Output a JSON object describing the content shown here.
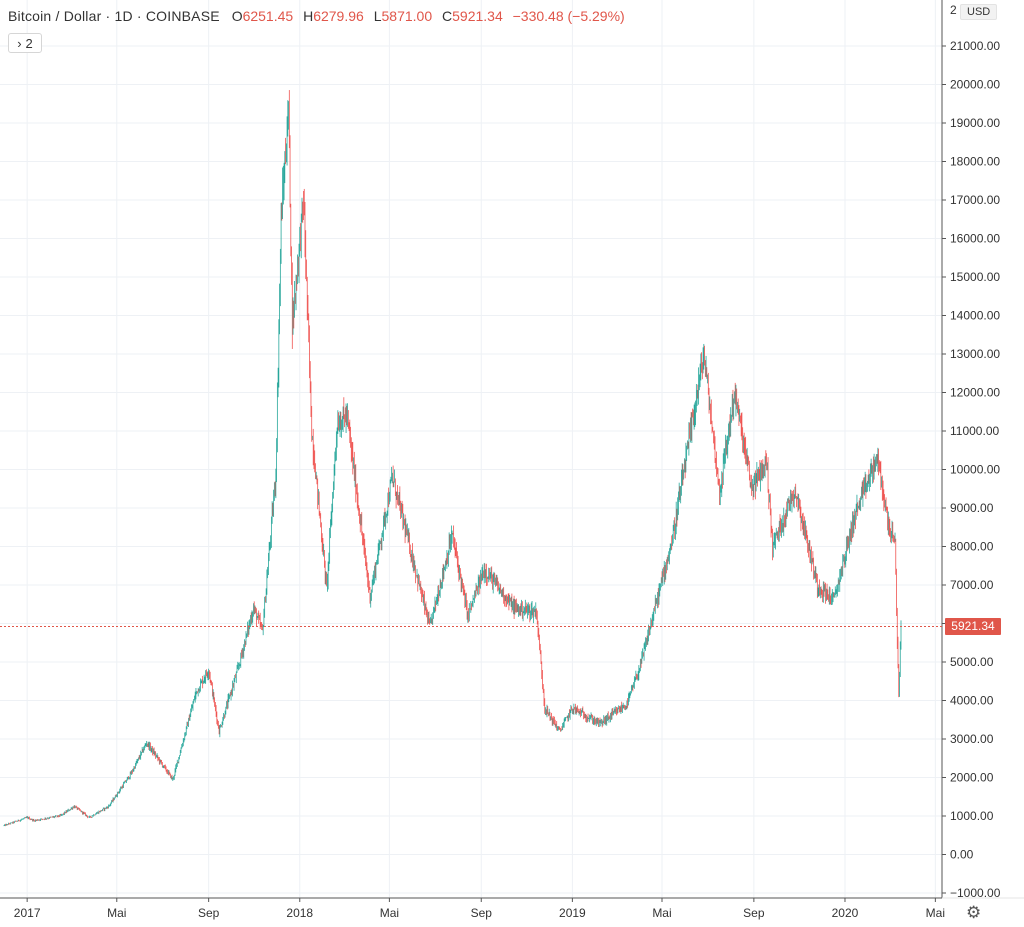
{
  "legend": {
    "symbol": "Bitcoin / Dollar · 1D · COINBASE",
    "open_label": "O",
    "open_value": "6251.45",
    "high_label": "H",
    "high_value": "6279.96",
    "low_label": "L",
    "low_value": "5871.00",
    "close_label": "C",
    "close_value": "5921.34",
    "change": "−330.48 (−5.29%)"
  },
  "collapse_button": {
    "icon": "chevron-right-icon",
    "count": "2"
  },
  "currency": "USD",
  "price_axis": {
    "ticks": [
      "21000.00",
      "20000.00",
      "19000.00",
      "18000.00",
      "17000.00",
      "16000.00",
      "15000.00",
      "14000.00",
      "13000.00",
      "12000.00",
      "11000.00",
      "10000.00",
      "9000.00",
      "8000.00",
      "7000.00",
      "6000.00",
      "5000.00",
      "4000.00",
      "3000.00",
      "2000.00",
      "1000.00",
      "0.00",
      "−1000.00"
    ],
    "top_partial": "2"
  },
  "current_price": "5921.34",
  "time_axis": {
    "labels": [
      "2017",
      "Mai",
      "Sep",
      "2018",
      "Mai",
      "Sep",
      "2019",
      "Mai",
      "Sep",
      "2020",
      "Mai"
    ]
  },
  "settings_icon": "gear-icon",
  "colors": {
    "up": "#26a69a",
    "down": "#ef5350",
    "last_price": "#e0564a",
    "grid": "#eef1f5"
  },
  "chart_data": {
    "type": "candlestick",
    "title": "Bitcoin / Dollar",
    "interval": "1D",
    "exchange": "COINBASE",
    "ylim": [
      -1000,
      21000
    ],
    "y_unit": "USD",
    "grid": true,
    "x_start": "2016-12-01",
    "x_end": "2020-03-16",
    "last_close": 5921.34,
    "price_path": [
      [
        "2016-12-01",
        750
      ],
      [
        "2017-01-01",
        960
      ],
      [
        "2017-01-10",
        880
      ],
      [
        "2017-02-15",
        1010
      ],
      [
        "2017-03-05",
        1250
      ],
      [
        "2017-03-25",
        960
      ],
      [
        "2017-04-20",
        1250
      ],
      [
        "2017-05-20",
        2100
      ],
      [
        "2017-06-10",
        2900
      ],
      [
        "2017-07-15",
        1950
      ],
      [
        "2017-08-15",
        4200
      ],
      [
        "2017-09-01",
        4800
      ],
      [
        "2017-09-15",
        3200
      ],
      [
        "2017-10-10",
        4800
      ],
      [
        "2017-10-31",
        6400
      ],
      [
        "2017-11-12",
        5800
      ],
      [
        "2017-11-30",
        9900
      ],
      [
        "2017-12-07",
        16500
      ],
      [
        "2017-12-17",
        19400
      ],
      [
        "2017-12-22",
        13800
      ],
      [
        "2018-01-06",
        17000
      ],
      [
        "2018-01-17",
        11000
      ],
      [
        "2018-02-06",
        6900
      ],
      [
        "2018-02-20",
        11200
      ],
      [
        "2018-03-05",
        11400
      ],
      [
        "2018-04-05",
        6700
      ],
      [
        "2018-05-05",
        9800
      ],
      [
        "2018-06-24",
        5900
      ],
      [
        "2018-07-24",
        8300
      ],
      [
        "2018-08-14",
        6200
      ],
      [
        "2018-09-05",
        7400
      ],
      [
        "2018-10-15",
        6400
      ],
      [
        "2018-11-14",
        6300
      ],
      [
        "2018-11-25",
        3800
      ],
      [
        "2018-12-15",
        3200
      ],
      [
        "2019-01-01",
        3800
      ],
      [
        "2019-02-07",
        3400
      ],
      [
        "2019-03-15",
        3900
      ],
      [
        "2019-04-02",
        4900
      ],
      [
        "2019-05-15",
        8200
      ],
      [
        "2019-06-26",
        13000
      ],
      [
        "2019-07-17",
        9400
      ],
      [
        "2019-08-06",
        12000
      ],
      [
        "2019-08-29",
        9500
      ],
      [
        "2019-09-18",
        10200
      ],
      [
        "2019-09-26",
        8000
      ],
      [
        "2019-10-26",
        9500
      ],
      [
        "2019-11-25",
        7000
      ],
      [
        "2019-12-17",
        6600
      ],
      [
        "2020-01-14",
        8800
      ],
      [
        "2020-02-13",
        10300
      ],
      [
        "2020-02-27",
        8700
      ],
      [
        "2020-03-08",
        8000
      ],
      [
        "2020-03-12",
        4800
      ],
      [
        "2020-03-13",
        4200
      ],
      [
        "2020-03-16",
        5900
      ]
    ]
  }
}
